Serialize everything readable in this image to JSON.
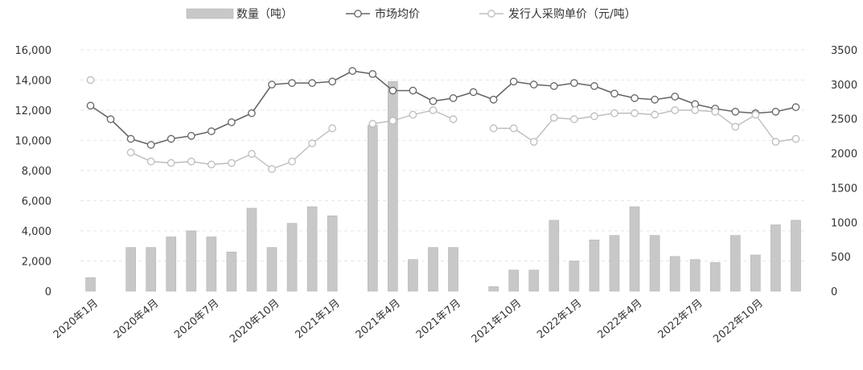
{
  "chart_data": {
    "type": "bar",
    "legend": {
      "placement": "top-center",
      "entries": [
        {
          "label": "数量（吨）",
          "kind": "bar",
          "color": "#c8c8c8"
        },
        {
          "label": "市场均价",
          "kind": "line-marker",
          "color": "#666666"
        },
        {
          "label": "发行人采购单价（元/吨）",
          "kind": "line-marker",
          "color": "#bdbdbd"
        }
      ]
    },
    "y_left": {
      "min": 0,
      "max": 16000,
      "ticks": [
        "0",
        "2,000",
        "4,000",
        "6,000",
        "8,000",
        "10,000",
        "12,000",
        "14,000",
        "16,000"
      ]
    },
    "y_right": {
      "min": 0,
      "max": 3500,
      "ticks": [
        "0",
        "500",
        "1000",
        "1500",
        "2000",
        "2500",
        "3000",
        "3500"
      ]
    },
    "x_tick_labels": [
      "2020年1月",
      "2020年4月",
      "2020年7月",
      "2020年10月",
      "2021年1月",
      "2021年4月",
      "2021年7月",
      "2021年10月",
      "2022年1月",
      "2022年4月",
      "2022年7月",
      "2022年10月"
    ],
    "x_tick_every": 3,
    "n_points": 36,
    "series": [
      {
        "name": "数量（吨）",
        "axis": "left",
        "values": [
          900,
          null,
          2900,
          2900,
          3600,
          4000,
          3600,
          2600,
          5500,
          2900,
          4500,
          5600,
          5000,
          null,
          11000,
          13900,
          2100,
          2900,
          2900,
          null,
          300,
          1400,
          1400,
          4700,
          2000,
          3400,
          3700,
          5600,
          3700,
          2300,
          2100,
          1900,
          3700,
          2400,
          4400,
          4700
        ]
      },
      {
        "name": "市场均价",
        "axis": "left",
        "values": [
          12300,
          11400,
          10100,
          9700,
          10100,
          10300,
          10600,
          11200,
          11800,
          13700,
          13800,
          13800,
          13900,
          14600,
          14400,
          13300,
          13300,
          12600,
          12800,
          13200,
          12700,
          13900,
          13700,
          13600,
          13800,
          13600,
          13100,
          12800,
          12700,
          12900,
          12400,
          12100,
          11900,
          11800,
          11900,
          12200
        ]
      },
      {
        "name": "发行人采购单价（元/吨）",
        "axis": "left",
        "values": [
          14000,
          null,
          9200,
          8600,
          8500,
          8600,
          8400,
          8500,
          9100,
          8100,
          8600,
          9800,
          10800,
          null,
          11100,
          11300,
          11700,
          12000,
          11400,
          null,
          10800,
          10800,
          9900,
          11500,
          11400,
          11600,
          11800,
          11800,
          11700,
          12000,
          12000,
          11900,
          10900,
          11700,
          9900,
          10100
        ]
      }
    ],
    "grid": true
  }
}
